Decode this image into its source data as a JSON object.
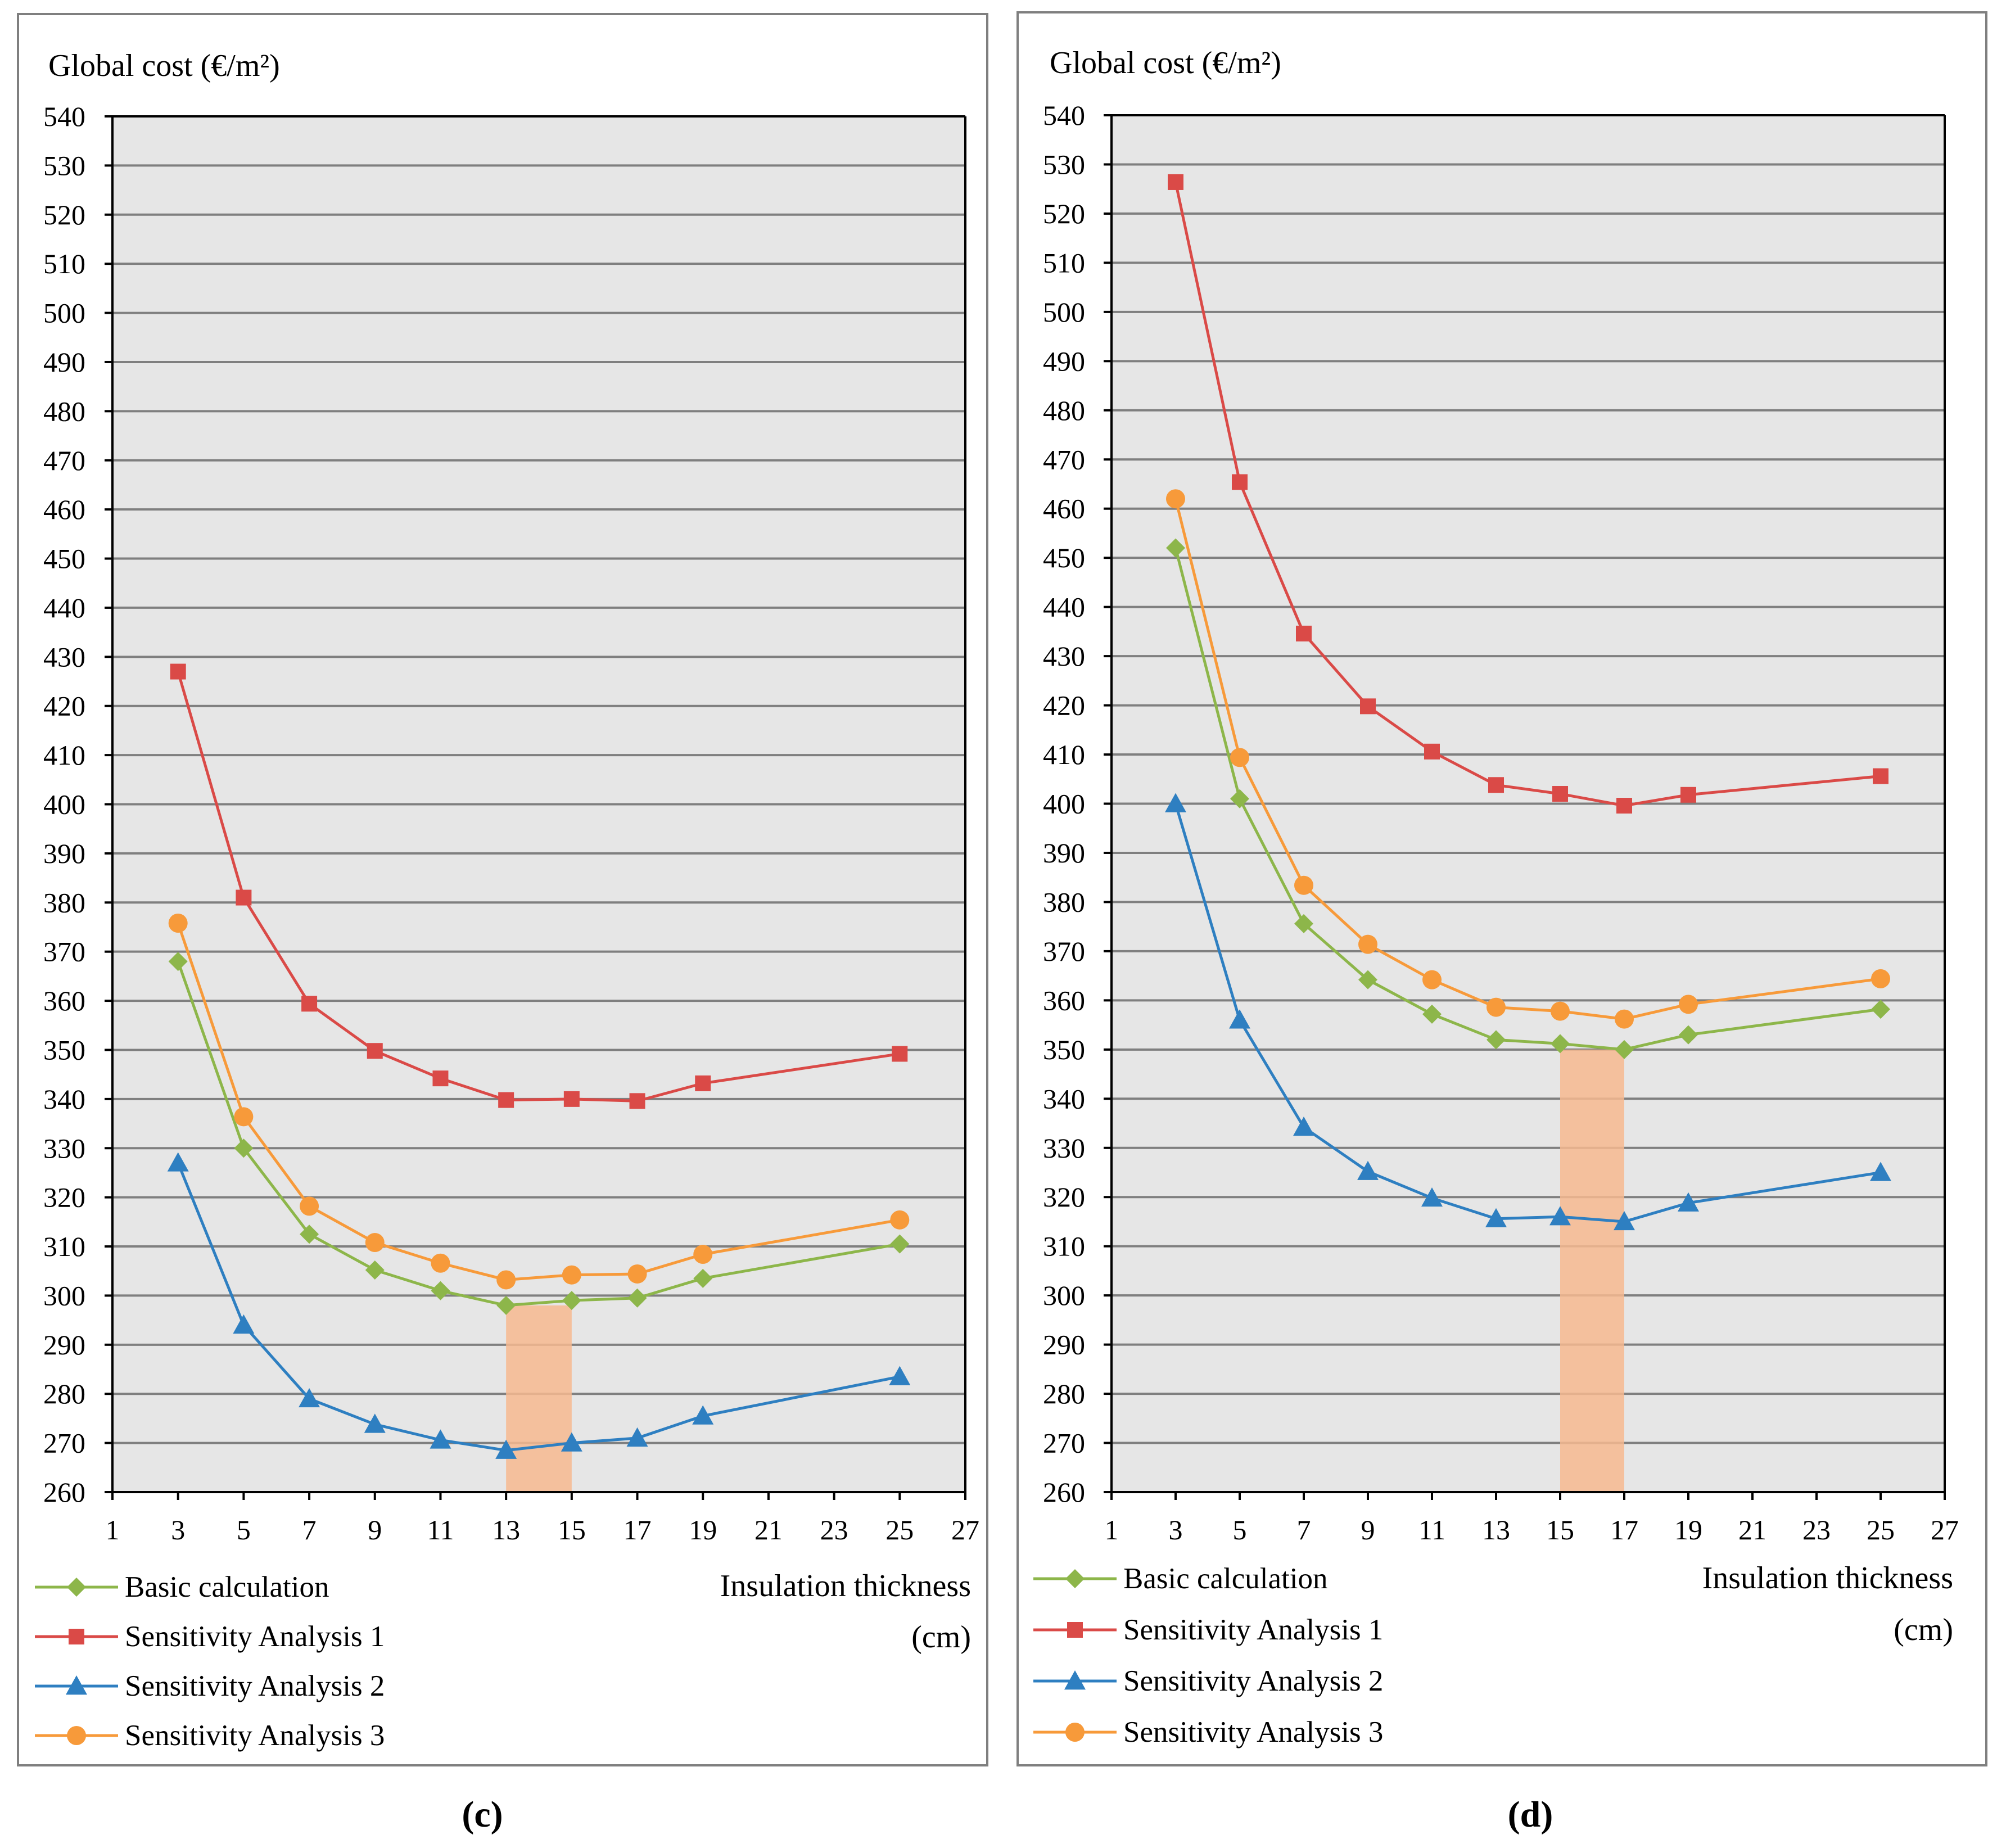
{
  "chart_data": [
    {
      "type": "line",
      "panel_label": "(c)",
      "y_title": "Global cost (€/m²)",
      "x_title_line1": "Insulation thickness",
      "x_title_line2": "(cm)",
      "xlim": [
        1,
        27
      ],
      "ylim": [
        260,
        540
      ],
      "x_ticks": [
        1,
        3,
        5,
        7,
        9,
        11,
        13,
        15,
        17,
        19,
        21,
        23,
        25,
        27
      ],
      "y_ticks": [
        260,
        270,
        280,
        290,
        300,
        310,
        320,
        330,
        340,
        350,
        360,
        370,
        380,
        390,
        400,
        410,
        420,
        430,
        440,
        450,
        460,
        470,
        480,
        490,
        500,
        510,
        520,
        530,
        540
      ],
      "grid": true,
      "legend_position": "bottom-left",
      "highlight_range": [
        13,
        15
      ],
      "x": [
        3,
        5,
        7,
        9,
        11,
        13,
        15,
        17,
        19,
        25
      ],
      "series": [
        {
          "name": "Basic calculation",
          "marker": "diamond",
          "color": "#8DB64A",
          "values": [
            368,
            330,
            312.5,
            305.2,
            301,
            298,
            299,
            299.5,
            303.5,
            310.5
          ]
        },
        {
          "name": "Sensitivity Analysis 1",
          "marker": "square",
          "color": "#DA4A47",
          "values": [
            427,
            381,
            359.4,
            349.8,
            344.2,
            339.8,
            340,
            339.6,
            343.2,
            349.2
          ]
        },
        {
          "name": "Sensitivity Analysis 2",
          "marker": "triangle",
          "color": "#2E7FC1",
          "values": [
            327,
            294,
            279,
            273.8,
            270.6,
            268.5,
            270,
            271,
            275.5,
            283.5
          ]
        },
        {
          "name": "Sensitivity Analysis 3",
          "marker": "circle",
          "color": "#F79A3A",
          "values": [
            375.8,
            336.4,
            318.2,
            310.8,
            306.6,
            303.2,
            304.2,
            304.4,
            308.4,
            315.4
          ]
        }
      ]
    },
    {
      "type": "line",
      "panel_label": "(d)",
      "y_title": "Global cost (€/m²)",
      "x_title_line1": "Insulation thickness",
      "x_title_line2": "(cm)",
      "xlim": [
        1,
        27
      ],
      "ylim": [
        260,
        540
      ],
      "x_ticks": [
        1,
        3,
        5,
        7,
        9,
        11,
        13,
        15,
        17,
        19,
        21,
        23,
        25,
        27
      ],
      "y_ticks": [
        260,
        270,
        280,
        290,
        300,
        310,
        320,
        330,
        340,
        350,
        360,
        370,
        380,
        390,
        400,
        410,
        420,
        430,
        440,
        450,
        460,
        470,
        480,
        490,
        500,
        510,
        520,
        530,
        540
      ],
      "grid": true,
      "legend_position": "bottom-left",
      "highlight_range": [
        15,
        17
      ],
      "x": [
        3,
        5,
        7,
        9,
        11,
        13,
        15,
        17,
        19,
        25
      ],
      "series": [
        {
          "name": "Basic calculation",
          "marker": "diamond",
          "color": "#8DB64A",
          "values": [
            452,
            401,
            375.6,
            364.2,
            357.2,
            352,
            351.2,
            350,
            353,
            358.2
          ]
        },
        {
          "name": "Sensitivity Analysis 1",
          "marker": "square",
          "color": "#DA4A47",
          "values": [
            526.4,
            465.4,
            434.6,
            419.8,
            410.6,
            403.8,
            402,
            399.6,
            401.8,
            405.6
          ]
        },
        {
          "name": "Sensitivity Analysis 2",
          "marker": "triangle",
          "color": "#2E7FC1",
          "values": [
            400,
            356,
            334.2,
            325.2,
            319.8,
            315.6,
            316,
            315,
            318.8,
            325
          ]
        },
        {
          "name": "Sensitivity Analysis 3",
          "marker": "circle",
          "color": "#F79A3A",
          "values": [
            462,
            409.4,
            383.4,
            371.4,
            364.2,
            358.6,
            357.8,
            356.2,
            359.2,
            364.4
          ]
        }
      ]
    }
  ]
}
